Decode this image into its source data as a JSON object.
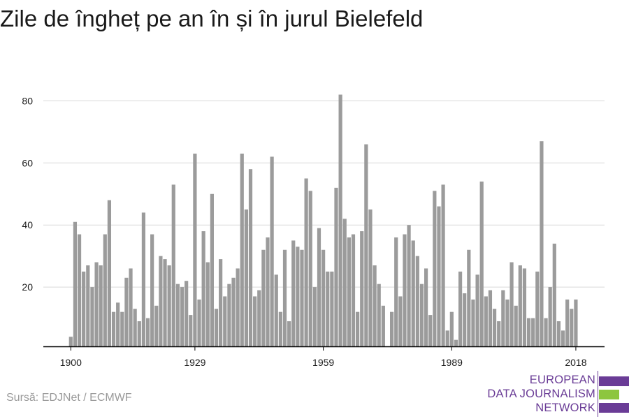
{
  "title": "Zile de îngheț pe an în și în jurul Bielefeld",
  "source": "Sursă: EDJNet / ECMWF",
  "logo": {
    "lines": [
      "EUROPEAN",
      "DATA JOURNALISM",
      "NETWORK"
    ],
    "colors": {
      "purple": "#6a3c96",
      "green": "#8dc63f"
    }
  },
  "colors": {
    "bar": "#9b9b9b",
    "grid": "#d9d9d9",
    "axis": "#000000",
    "text": "#1a1a1a"
  },
  "chart_data": {
    "type": "bar",
    "title": "Zile de îngheț pe an în și în jurul Bielefeld",
    "xlabel": "",
    "ylabel": "",
    "x": [
      1900,
      1901,
      1902,
      1903,
      1904,
      1905,
      1906,
      1907,
      1908,
      1909,
      1910,
      1911,
      1912,
      1913,
      1914,
      1915,
      1916,
      1917,
      1918,
      1919,
      1920,
      1921,
      1922,
      1923,
      1924,
      1925,
      1926,
      1927,
      1928,
      1929,
      1930,
      1931,
      1932,
      1933,
      1934,
      1935,
      1936,
      1937,
      1938,
      1939,
      1940,
      1941,
      1942,
      1943,
      1944,
      1945,
      1946,
      1947,
      1948,
      1949,
      1950,
      1951,
      1952,
      1953,
      1954,
      1955,
      1956,
      1957,
      1958,
      1959,
      1960,
      1961,
      1962,
      1963,
      1964,
      1965,
      1966,
      1967,
      1968,
      1969,
      1970,
      1971,
      1972,
      1973,
      1974,
      1975,
      1976,
      1977,
      1978,
      1979,
      1980,
      1981,
      1982,
      1983,
      1984,
      1985,
      1986,
      1987,
      1988,
      1989,
      1990,
      1991,
      1992,
      1993,
      1994,
      1995,
      1996,
      1997,
      1998,
      1999,
      2000,
      2001,
      2002,
      2003,
      2004,
      2005,
      2006,
      2007,
      2008,
      2009,
      2010,
      2011,
      2012,
      2013,
      2014,
      2015,
      2016,
      2017,
      2018
    ],
    "values": [
      4,
      41,
      37,
      25,
      27,
      20,
      28,
      27,
      37,
      48,
      12,
      15,
      12,
      23,
      26,
      13,
      9,
      44,
      10,
      37,
      14,
      30,
      29,
      27,
      53,
      21,
      20,
      22,
      11,
      63,
      16,
      38,
      28,
      50,
      13,
      29,
      17,
      21,
      23,
      26,
      63,
      45,
      58,
      17,
      19,
      32,
      36,
      62,
      24,
      12,
      32,
      9,
      35,
      33,
      32,
      55,
      51,
      20,
      39,
      32,
      25,
      25,
      52,
      82,
      42,
      36,
      37,
      12,
      38,
      66,
      45,
      27,
      21,
      14,
      0,
      12,
      36,
      17,
      37,
      40,
      35,
      30,
      21,
      26,
      11,
      51,
      46,
      53,
      6,
      12,
      3,
      25,
      18,
      32,
      16,
      24,
      54,
      17,
      19,
      13,
      9,
      19,
      16,
      28,
      14,
      27,
      26,
      10,
      10,
      25,
      67,
      10,
      20,
      34,
      9,
      6,
      16,
      13,
      16
    ],
    "xticks": [
      1900,
      1929,
      1959,
      1989,
      2018
    ],
    "yticks": [
      20,
      40,
      60,
      80
    ],
    "ylim": [
      0,
      85
    ],
    "grid": true,
    "legend": "none"
  }
}
